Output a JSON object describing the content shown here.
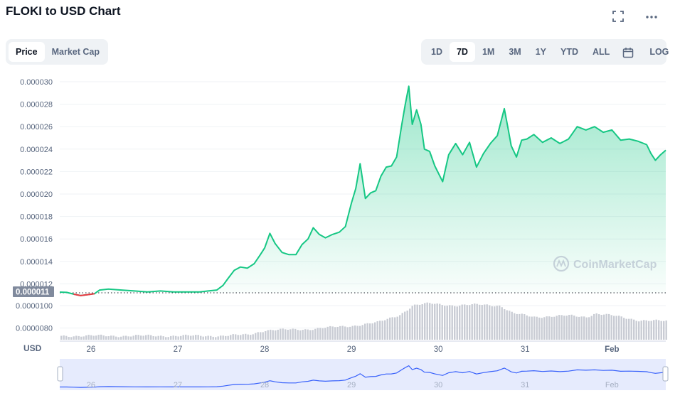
{
  "header": {
    "title": "FLOKI to USD Chart",
    "fullscreen_icon": "expand-icon",
    "more_icon": "more-horizontal-icon"
  },
  "metric_tabs": [
    {
      "label": "Price",
      "active": true
    },
    {
      "label": "Market Cap",
      "active": false
    }
  ],
  "range_tabs": [
    {
      "label": "1D",
      "active": false
    },
    {
      "label": "7D",
      "active": true
    },
    {
      "label": "1M",
      "active": false
    },
    {
      "label": "3M",
      "active": false
    },
    {
      "label": "1Y",
      "active": false
    },
    {
      "label": "YTD",
      "active": false
    },
    {
      "label": "ALL",
      "active": false
    }
  ],
  "calendar_icon": "calendar-icon",
  "log_label": "LOG",
  "watermark": "CoinMarketCap",
  "currency_label": "USD",
  "current_price_label": "0.000011",
  "colors": {
    "up": "#16c784",
    "down": "#ea3943",
    "volume": "#c9ccd4",
    "navigator_line": "#3861fb",
    "navigator_fill": "#e6ebfd"
  },
  "chart_data": {
    "type": "line",
    "x_tick_labels": [
      "26",
      "27",
      "28",
      "29",
      "30",
      "31",
      "Feb"
    ],
    "x_tick_values": [
      26,
      27,
      28,
      29,
      30,
      31,
      32
    ],
    "xlim": [
      25.64,
      32.62
    ],
    "y_tick_labels": [
      "0.000030",
      "0.000028",
      "0.000026",
      "0.000024",
      "0.000022",
      "0.000020",
      "0.000018",
      "0.000016",
      "0.000014",
      "0.000012",
      "0.0000100",
      "0.0000080"
    ],
    "y_axis": "price (USD)",
    "baseline_price": 1.1e-05,
    "price_series": {
      "x": [
        25.64,
        25.72,
        25.8,
        25.88,
        25.96,
        26.04,
        26.1,
        26.2,
        26.35,
        26.5,
        26.65,
        26.8,
        26.95,
        27.1,
        27.25,
        27.35,
        27.45,
        27.52,
        27.58,
        27.65,
        27.72,
        27.8,
        27.88,
        27.95,
        28.0,
        28.06,
        28.12,
        28.2,
        28.28,
        28.36,
        28.43,
        28.5,
        28.56,
        28.63,
        28.7,
        28.78,
        28.86,
        28.93,
        28.96,
        29.0,
        29.05,
        29.1,
        29.16,
        29.22,
        29.28,
        29.34,
        29.4,
        29.46,
        29.52,
        29.58,
        29.62,
        29.66,
        29.7,
        29.75,
        29.8,
        29.84,
        29.9,
        29.96,
        30.05,
        30.12,
        30.2,
        30.28,
        30.36,
        30.44,
        30.52,
        30.6,
        30.68,
        30.76,
        30.8,
        30.84,
        30.9,
        30.96,
        31.02,
        31.1,
        31.2,
        31.3,
        31.4,
        31.5,
        31.6,
        31.7,
        31.8,
        31.9,
        32.0,
        32.1,
        32.2,
        32.3,
        32.4,
        32.45,
        32.5,
        32.56,
        32.62
      ],
      "y": [
        1.108e-05,
        1.105e-05,
        1.085e-05,
        1.07e-05,
        1.08e-05,
        1.09e-05,
        1.13e-05,
        1.14e-05,
        1.13e-05,
        1.12e-05,
        1.11e-05,
        1.12e-05,
        1.11e-05,
        1.11e-05,
        1.11e-05,
        1.12e-05,
        1.13e-05,
        1.18e-05,
        1.25e-05,
        1.32e-05,
        1.35e-05,
        1.34e-05,
        1.38e-05,
        1.46e-05,
        1.52e-05,
        1.65e-05,
        1.56e-05,
        1.48e-05,
        1.46e-05,
        1.46e-05,
        1.55e-05,
        1.6e-05,
        1.7e-05,
        1.64e-05,
        1.61e-05,
        1.64e-05,
        1.66e-05,
        1.71e-05,
        1.8e-05,
        1.92e-05,
        2.05e-05,
        2.27e-05,
        1.96e-05,
        2.01e-05,
        2.03e-05,
        2.16e-05,
        2.24e-05,
        2.25e-05,
        2.33e-05,
        2.62e-05,
        2.8e-05,
        2.96e-05,
        2.62e-05,
        2.75e-05,
        2.62e-05,
        2.4e-05,
        2.38e-05,
        2.25e-05,
        2.11e-05,
        2.35e-05,
        2.45e-05,
        2.35e-05,
        2.46e-05,
        2.24e-05,
        2.36e-05,
        2.45e-05,
        2.52e-05,
        2.76e-05,
        2.6e-05,
        2.43e-05,
        2.33e-05,
        2.48e-05,
        2.49e-05,
        2.53e-05,
        2.46e-05,
        2.5e-05,
        2.45e-05,
        2.49e-05,
        2.6e-05,
        2.57e-05,
        2.6e-05,
        2.55e-05,
        2.57e-05,
        2.48e-05,
        2.49e-05,
        2.47e-05,
        2.44e-05,
        2.36e-05,
        2.3e-05,
        2.35e-05,
        2.39e-05
      ]
    },
    "volume_series": {
      "x": [
        25.64,
        26.0,
        26.5,
        27.0,
        27.5,
        27.8,
        28.0,
        28.5,
        29.0,
        29.3,
        29.55,
        29.7,
        29.9,
        30.2,
        30.5,
        30.7,
        30.85,
        31.1,
        31.5,
        31.7,
        31.8,
        32.0,
        32.3,
        32.62
      ],
      "y": [
        7.3e-06,
        7.3e-06,
        7.3e-06,
        7.3e-06,
        7.3e-06,
        7.4e-06,
        7.8e-06,
        7.9e-06,
        8.2e-06,
        8.5e-06,
        9.2e-06,
        1e-05,
        1.02e-05,
        1e-05,
        1.01e-05,
        1e-05,
        9.3e-06,
        9e-06,
        9.1e-06,
        9e-06,
        9.3e-06,
        9.1e-06,
        8.7e-06,
        8.6e-06
      ]
    },
    "grid": true,
    "legend": "none"
  }
}
